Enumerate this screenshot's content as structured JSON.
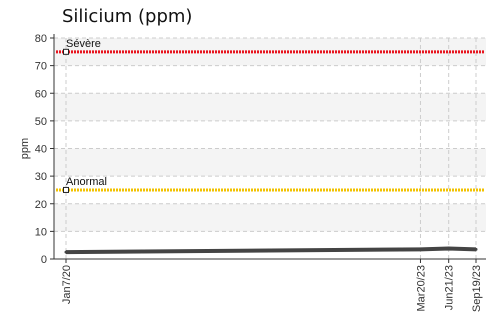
{
  "chart_data": {
    "type": "line",
    "title": "Silicium (ppm)",
    "ylabel": "ppm",
    "xlabel": "",
    "ylim": [
      0,
      80
    ],
    "yticks": [
      0,
      10,
      20,
      30,
      40,
      50,
      60,
      70,
      80
    ],
    "x": [
      "2020-01-07",
      "2023-03-20",
      "2023-06-21",
      "2023-09-19"
    ],
    "xtick_labels": [
      "Jan7/20",
      "Mar20/23",
      "Jun21/23",
      "Sep19/23"
    ],
    "grid": true,
    "series": [
      {
        "values": [
          2.5,
          3.5,
          3.8,
          3.5
        ],
        "color": "#444444"
      }
    ],
    "thresholds": [
      {
        "name": "Sévère",
        "value": 75,
        "color": "#e8141e"
      },
      {
        "name": "Anormal",
        "value": 25,
        "color": "#f2c200"
      }
    ]
  }
}
